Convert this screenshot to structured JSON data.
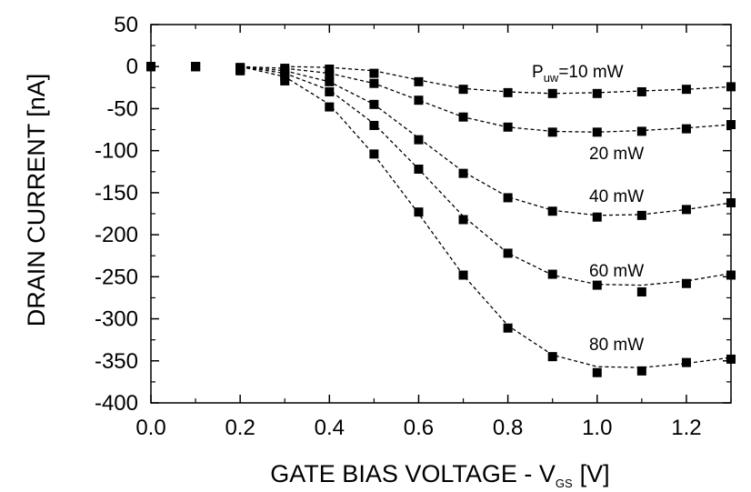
{
  "chart_data": {
    "type": "scatter",
    "xlabel": "GATE BIAS VOLTAGE - V",
    "xlabel_subscript": "GS",
    "xlabel_unit": "[V]",
    "ylabel": "DRAIN CURRENT  [nA]",
    "xlim": [
      0.0,
      1.3
    ],
    "ylim": [
      -400,
      50
    ],
    "x_ticks": [
      0.0,
      0.2,
      0.4,
      0.6,
      0.8,
      1.0,
      1.2
    ],
    "x_tick_labels": [
      "0.0",
      "0.2",
      "0.4",
      "0.6",
      "0.8",
      "1.0",
      "1.2"
    ],
    "y_ticks": [
      50,
      0,
      -50,
      -100,
      -150,
      -200,
      -250,
      -300,
      -350,
      -400
    ],
    "y_tick_labels": [
      "50",
      "0",
      "-50",
      "-100",
      "-150",
      "-200",
      "-250",
      "-300",
      "-350",
      "-400"
    ],
    "grid": false,
    "legend": "inline labels",
    "marker": "square",
    "fit_line_style": "dashed",
    "colors": {
      "marker": "#000000",
      "fit": "#000000",
      "axis": "#000000"
    },
    "series": [
      {
        "label_prefix": "P",
        "label_subscript": "uw",
        "label_value": "=10 mW",
        "x": [
          0.0,
          0.1,
          0.2,
          0.3,
          0.4,
          0.5,
          0.6,
          0.7,
          0.8,
          0.9,
          1.0,
          1.1,
          1.2,
          1.3
        ],
        "y": [
          0,
          0,
          -1,
          -2,
          -3,
          -8,
          -18,
          -27,
          -31,
          -32,
          -32,
          -30,
          -27,
          -24
        ],
        "fit_x": [
          0.3,
          0.4,
          0.5,
          0.6,
          0.7,
          0.8,
          0.9,
          1.0,
          1.1,
          1.2,
          1.3
        ],
        "fit_y": [
          0,
          -1,
          -5,
          -16,
          -26,
          -30,
          -32,
          -31,
          -29,
          -27,
          -24
        ]
      },
      {
        "label_value": "20 mW",
        "x": [
          0.0,
          0.1,
          0.2,
          0.3,
          0.4,
          0.5,
          0.6,
          0.7,
          0.8,
          0.9,
          1.0,
          1.1,
          1.2,
          1.3
        ],
        "y": [
          0,
          0,
          -2,
          -5,
          -10,
          -20,
          -40,
          -60,
          -72,
          -78,
          -78,
          -77,
          -74,
          -69
        ],
        "fit_x": [
          0.2,
          0.3,
          0.4,
          0.5,
          0.6,
          0.7,
          0.8,
          0.9,
          1.0,
          1.1,
          1.2,
          1.3
        ],
        "fit_y": [
          0,
          -2,
          -8,
          -20,
          -40,
          -60,
          -72,
          -77,
          -78,
          -76,
          -73,
          -69
        ]
      },
      {
        "label_value": "40 mW",
        "x": [
          0.0,
          0.1,
          0.2,
          0.3,
          0.4,
          0.5,
          0.6,
          0.7,
          0.8,
          0.9,
          1.0,
          1.1,
          1.2,
          1.3
        ],
        "y": [
          0,
          0,
          -3,
          -8,
          -18,
          -45,
          -87,
          -127,
          -156,
          -172,
          -179,
          -177,
          -170,
          -162
        ],
        "fit_x": [
          0.2,
          0.3,
          0.4,
          0.5,
          0.6,
          0.7,
          0.8,
          0.9,
          1.0,
          1.1,
          1.2,
          1.3
        ],
        "fit_y": [
          0,
          -5,
          -18,
          -45,
          -85,
          -125,
          -155,
          -171,
          -177,
          -176,
          -170,
          -162
        ]
      },
      {
        "label_value": "60 mW",
        "x": [
          0.0,
          0.1,
          0.2,
          0.3,
          0.4,
          0.5,
          0.6,
          0.7,
          0.8,
          0.9,
          1.0,
          1.1,
          1.2,
          1.3
        ],
        "y": [
          0,
          0,
          -4,
          -12,
          -30,
          -70,
          -122,
          -182,
          -222,
          -247,
          -260,
          -268,
          -258,
          -248
        ],
        "fit_x": [
          0.2,
          0.3,
          0.4,
          0.5,
          0.6,
          0.7,
          0.8,
          0.9,
          1.0,
          1.1,
          1.2,
          1.3
        ],
        "fit_y": [
          0,
          -8,
          -28,
          -68,
          -122,
          -178,
          -222,
          -248,
          -259,
          -260,
          -255,
          -246
        ]
      },
      {
        "label_value": "80 mW",
        "x": [
          0.0,
          0.1,
          0.2,
          0.3,
          0.4,
          0.5,
          0.6,
          0.7,
          0.8,
          0.9,
          1.0,
          1.1,
          1.2,
          1.3
        ],
        "y": [
          0,
          0,
          -5,
          -17,
          -48,
          -104,
          -173,
          -248,
          -311,
          -345,
          -364,
          -362,
          -352,
          -348
        ],
        "fit_x": [
          0.2,
          0.3,
          0.4,
          0.5,
          0.6,
          0.7,
          0.8,
          0.9,
          1.0,
          1.1,
          1.2,
          1.3
        ],
        "fit_y": [
          0,
          -12,
          -45,
          -105,
          -175,
          -248,
          -308,
          -343,
          -357,
          -358,
          -353,
          -346
        ]
      }
    ]
  }
}
